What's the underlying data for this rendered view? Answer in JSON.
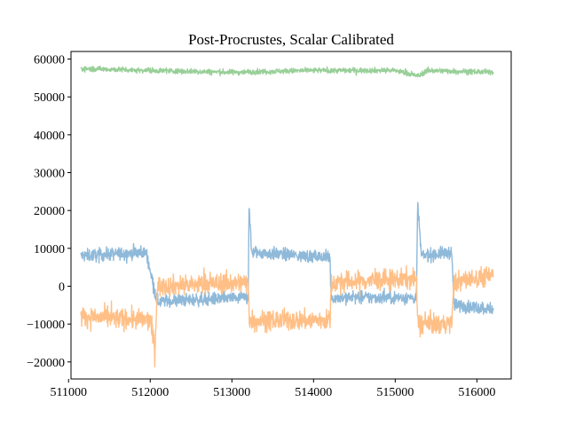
{
  "chart_data": {
    "type": "line",
    "title": "Post-Procrustes, Scalar Calibrated",
    "xlabel": "",
    "ylabel": "",
    "xlim": [
      511030,
      516420
    ],
    "ylim": [
      -24500,
      62000
    ],
    "x_ticks": [
      511000,
      512000,
      513000,
      514000,
      515000,
      516000
    ],
    "y_ticks": [
      -20000,
      -10000,
      0,
      10000,
      20000,
      30000,
      40000,
      50000,
      60000
    ],
    "x_tick_labels": [
      "511000",
      "512000",
      "513000",
      "514000",
      "515000",
      "516000"
    ],
    "y_tick_labels": [
      "−20000",
      "−10000",
      "0",
      "10000",
      "20000",
      "30000",
      "40000",
      "50000",
      "60000"
    ],
    "grid": false,
    "legend": "none",
    "x_range": [
      511150,
      516200
    ],
    "series": [
      {
        "color": "#8fb9d9",
        "noise": 1200,
        "segments": [
          [
            511150,
            8000
          ],
          [
            511950,
            9000
          ],
          [
            512085,
            -4000
          ],
          [
            513200,
            -3000
          ],
          [
            513210,
            22000
          ],
          [
            513240,
            9000
          ],
          [
            514200,
            7500
          ],
          [
            514215,
            -3000
          ],
          [
            515260,
            -3000
          ],
          [
            515275,
            22000
          ],
          [
            515320,
            8000
          ],
          [
            515690,
            9000
          ],
          [
            515720,
            -5000
          ],
          [
            516200,
            -6000
          ]
        ]
      },
      {
        "color": "#ffbf86",
        "noise": 1900,
        "segments": [
          [
            511150,
            -8000
          ],
          [
            512000,
            -9000
          ],
          [
            512060,
            -17000
          ],
          [
            512085,
            0
          ],
          [
            513200,
            1000
          ],
          [
            513215,
            -9000
          ],
          [
            514200,
            -9000
          ],
          [
            514220,
            1000
          ],
          [
            515260,
            2000
          ],
          [
            515275,
            -10000
          ],
          [
            515690,
            -10000
          ],
          [
            515720,
            1000
          ],
          [
            516200,
            3000
          ]
        ]
      },
      {
        "color": "#98cf98",
        "noise": 500,
        "segments": [
          [
            511150,
            57500
          ],
          [
            512000,
            57000
          ],
          [
            513000,
            56500
          ],
          [
            514000,
            57000
          ],
          [
            515000,
            57000
          ],
          [
            515280,
            55500
          ],
          [
            515400,
            57000
          ],
          [
            516200,
            56500
          ]
        ]
      }
    ]
  }
}
